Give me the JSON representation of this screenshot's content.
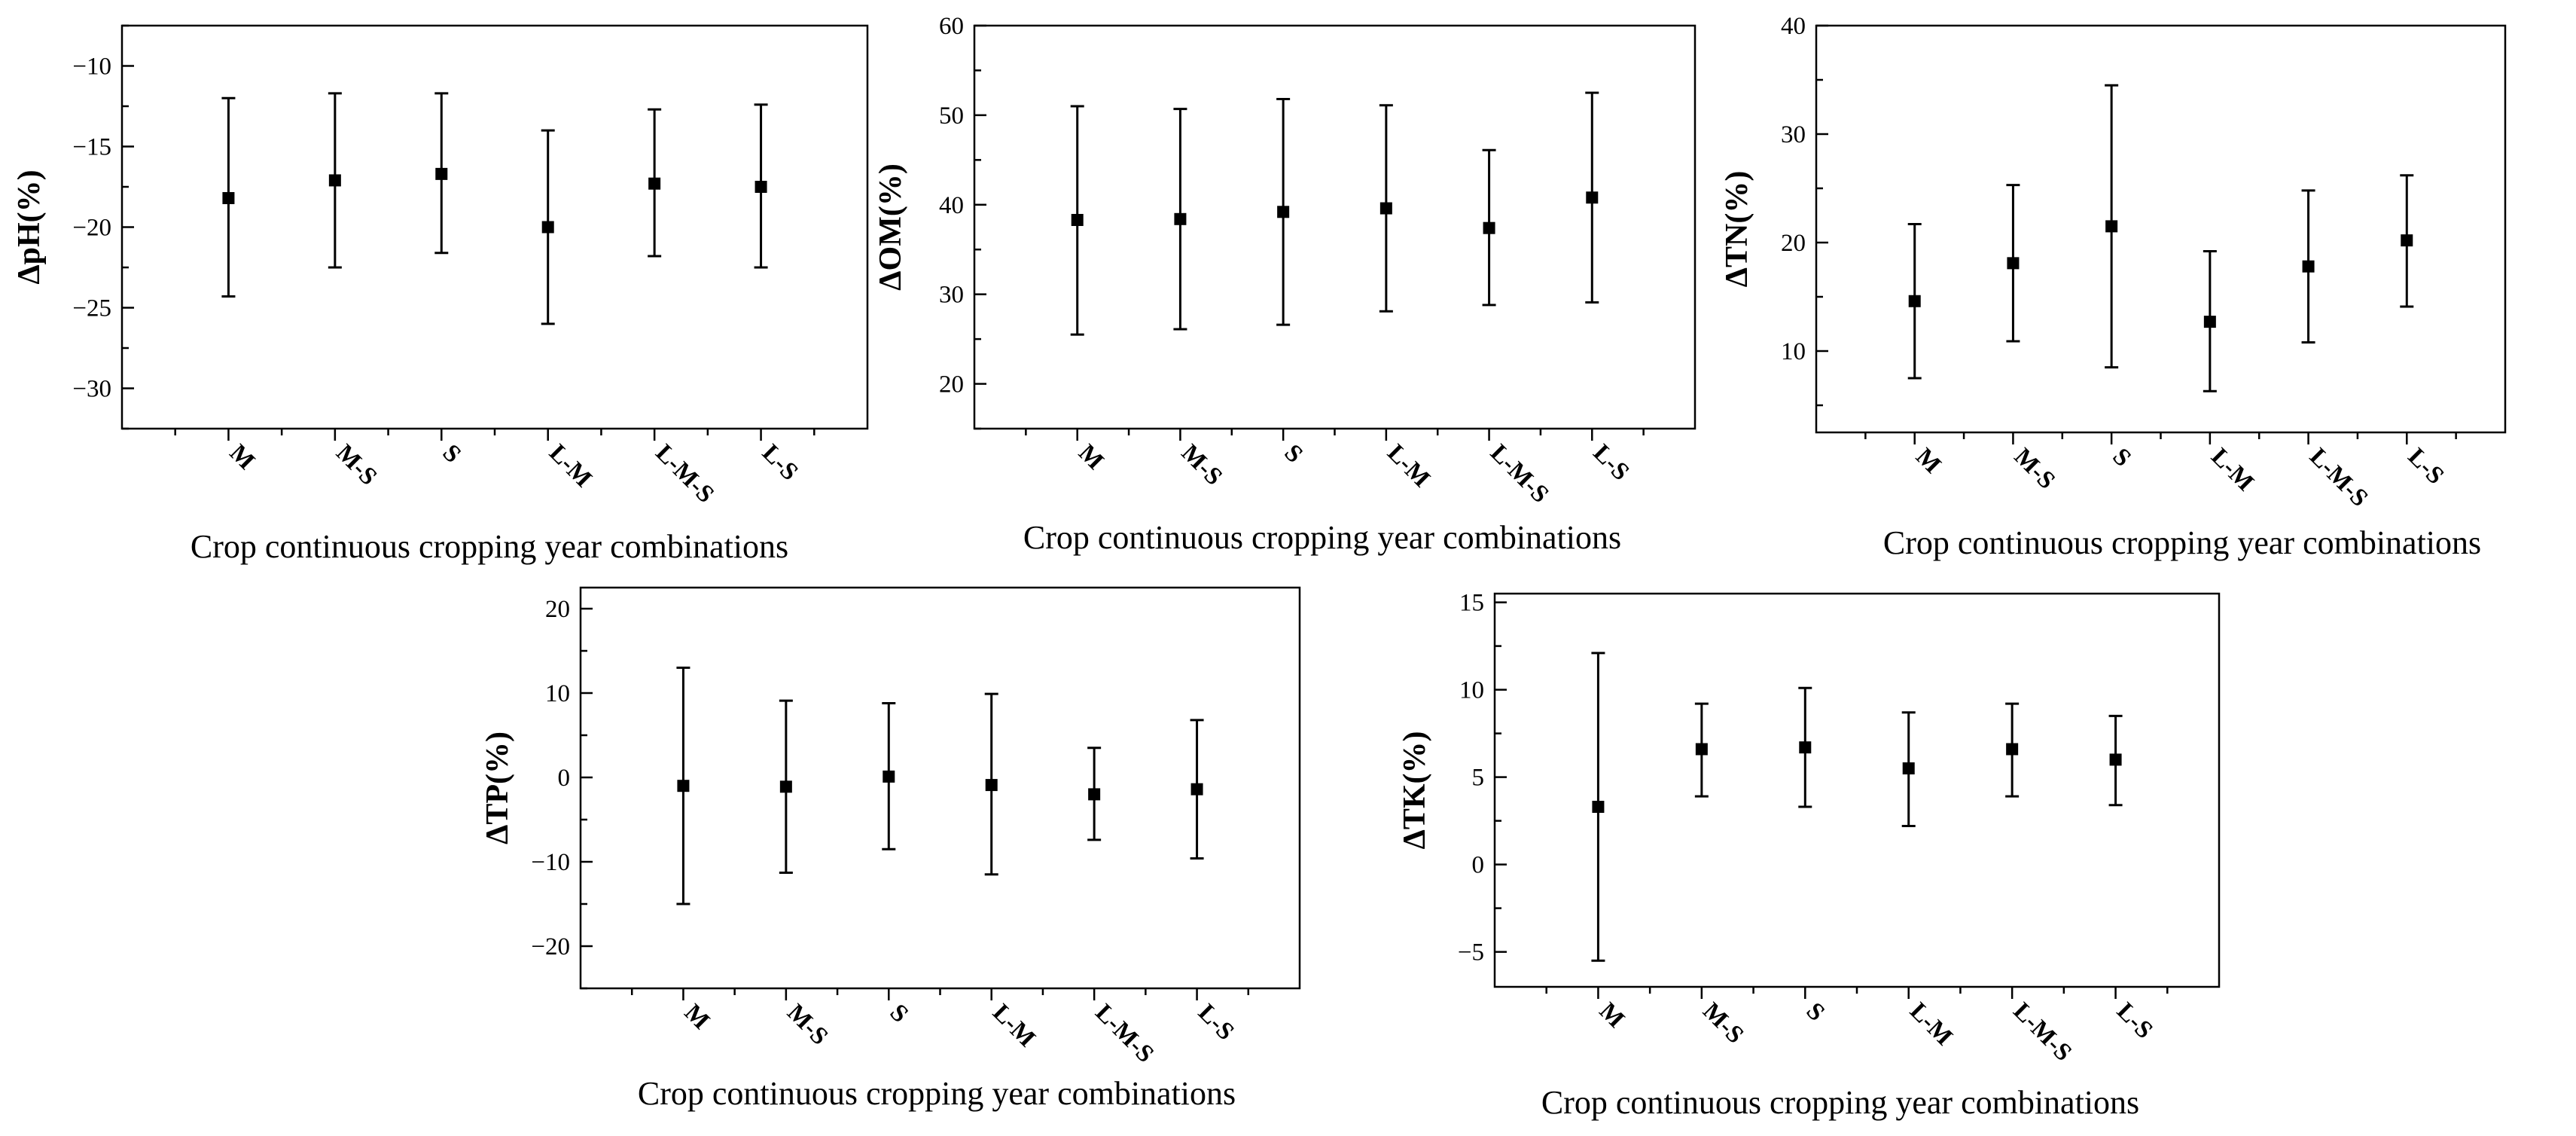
{
  "chart_data": [
    {
      "id": "ph",
      "type": "errorbar",
      "ylabel": "ΔpH(%)",
      "xlabel": "Crop continuous cropping year combinations",
      "categories": [
        "M",
        "M-S",
        "S",
        "L-M",
        "L-M-S",
        "L-S"
      ],
      "mean": [
        -18.2,
        -17.1,
        -16.7,
        -20.0,
        -17.3,
        -17.5
      ],
      "lower": [
        -24.3,
        -22.5,
        -21.6,
        -26.0,
        -21.8,
        -22.5
      ],
      "upper": [
        -12.0,
        -11.7,
        -11.7,
        -14.0,
        -12.7,
        -12.4
      ],
      "ylim": [
        -32.5,
        -7.5
      ],
      "yticks": [
        -30,
        -25,
        -20,
        -15,
        -10
      ],
      "ytick_labels": [
        "−30",
        "−25",
        "−20",
        "−15",
        "−10"
      ]
    },
    {
      "id": "om",
      "type": "errorbar",
      "ylabel": "ΔOM(%)",
      "xlabel": "Crop continuous cropping year combinations",
      "categories": [
        "M",
        "M-S",
        "S",
        "L-M",
        "L-M-S",
        "L-S"
      ],
      "mean": [
        38.3,
        38.4,
        39.2,
        39.6,
        37.4,
        40.8
      ],
      "lower": [
        25.5,
        26.1,
        26.6,
        28.1,
        28.8,
        29.1
      ],
      "upper": [
        51.0,
        50.7,
        51.8,
        51.1,
        46.1,
        52.5
      ],
      "ylim": [
        15,
        60
      ],
      "yticks": [
        20,
        30,
        40,
        50,
        60
      ],
      "ytick_labels": [
        "20",
        "30",
        "40",
        "50",
        "60"
      ]
    },
    {
      "id": "tn",
      "type": "errorbar",
      "ylabel": "ΔTN(%)",
      "xlabel": "Crop continuous cropping year combinations",
      "categories": [
        "M",
        "M-S",
        "S",
        "L-M",
        "L-M-S",
        "L-S"
      ],
      "mean": [
        14.6,
        18.1,
        21.5,
        12.7,
        17.8,
        20.2
      ],
      "lower": [
        7.5,
        10.9,
        8.5,
        6.3,
        10.8,
        14.1
      ],
      "upper": [
        21.7,
        25.3,
        34.5,
        19.2,
        24.8,
        26.2
      ],
      "ylim": [
        2.5,
        40
      ],
      "yticks": [
        10,
        20,
        30,
        40
      ],
      "ytick_labels": [
        "10",
        "20",
        "30",
        "40"
      ]
    },
    {
      "id": "tp",
      "type": "errorbar",
      "ylabel": "ΔTP(%)",
      "xlabel": "Crop continuous cropping year combinations",
      "categories": [
        "M",
        "M-S",
        "S",
        "L-M",
        "L-M-S",
        "L-S"
      ],
      "mean": [
        -1.0,
        -1.1,
        0.1,
        -0.9,
        -2.0,
        -1.4
      ],
      "lower": [
        -15.0,
        -11.3,
        -8.5,
        -11.5,
        -7.4,
        -9.6
      ],
      "upper": [
        13.0,
        9.1,
        8.8,
        9.9,
        3.5,
        6.8
      ],
      "ylim": [
        -25,
        22.5
      ],
      "yticks": [
        -20,
        -10,
        0,
        10,
        20
      ],
      "ytick_labels": [
        "−20",
        "−10",
        "0",
        "10",
        "20"
      ]
    },
    {
      "id": "tk",
      "type": "errorbar",
      "ylabel": "ΔTK(%)",
      "xlabel": "Crop continuous cropping year combinations",
      "categories": [
        "M",
        "M-S",
        "S",
        "L-M",
        "L-M-S",
        "L-S"
      ],
      "mean": [
        3.3,
        6.6,
        6.7,
        5.5,
        6.6,
        6.0
      ],
      "lower": [
        -5.5,
        3.9,
        3.3,
        2.2,
        3.9,
        3.4
      ],
      "upper": [
        12.1,
        9.2,
        10.1,
        8.7,
        9.2,
        8.5
      ],
      "ylim": [
        -7,
        15.5
      ],
      "yticks": [
        -5,
        0,
        5,
        10,
        15
      ],
      "ytick_labels": [
        "−5",
        "0",
        "5",
        "10",
        "15"
      ]
    }
  ]
}
